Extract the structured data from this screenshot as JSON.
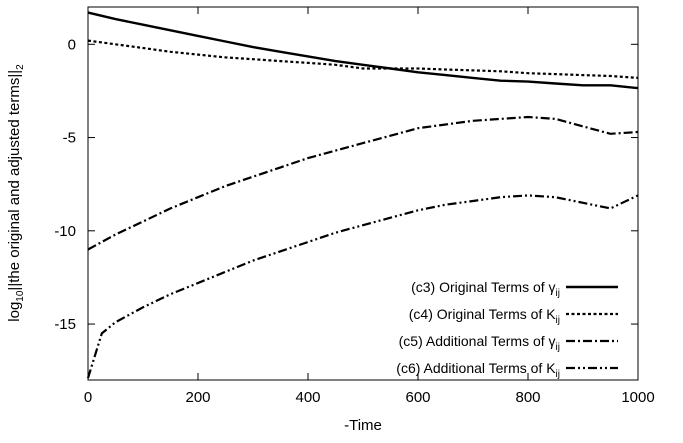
{
  "chart_data": {
    "type": "line",
    "xlabel": "-Time",
    "ylabel": "log10||the original and adjusted terms||2",
    "ylabel_parts": {
      "prefix": "log",
      "log_base": "10",
      "mid": "||the original and adjusted terms||",
      "norm_sub": "2"
    },
    "xlim": [
      0,
      1000
    ],
    "ylim": [
      -18,
      2
    ],
    "x_ticks": [
      0,
      200,
      400,
      600,
      800,
      1000
    ],
    "y_ticks": [
      0,
      -5,
      -10,
      -15
    ],
    "x_tick_labels": [
      "0",
      "200",
      "400",
      "600",
      "800",
      "1000"
    ],
    "y_tick_labels": [
      "0",
      "-5",
      "-10",
      "-15"
    ],
    "grid": false,
    "legend_position": "bottom-right",
    "series": [
      {
        "name": "(c3) Original Terms of γij",
        "label_parts": {
          "main": "(c3) Original Terms of ",
          "sym": "γ",
          "sub": "ij"
        },
        "style": "solid",
        "x": [
          0,
          50,
          100,
          150,
          200,
          250,
          300,
          350,
          400,
          450,
          500,
          550,
          600,
          650,
          700,
          750,
          800,
          850,
          900,
          950,
          1000
        ],
        "y": [
          1.7,
          1.35,
          1.05,
          0.75,
          0.45,
          0.15,
          -0.15,
          -0.4,
          -0.65,
          -0.9,
          -1.1,
          -1.3,
          -1.5,
          -1.65,
          -1.8,
          -1.95,
          -2.0,
          -2.1,
          -2.2,
          -2.2,
          -2.35
        ]
      },
      {
        "name": "(c4) Original Terms of Kij",
        "label_parts": {
          "main": "(c4) Original Terms of K",
          "sym": "",
          "sub": "ij"
        },
        "style": "dotted",
        "x": [
          0,
          50,
          100,
          150,
          200,
          250,
          300,
          350,
          400,
          450,
          500,
          550,
          600,
          650,
          700,
          750,
          800,
          850,
          900,
          950,
          1000
        ],
        "y": [
          0.2,
          0.0,
          -0.2,
          -0.4,
          -0.55,
          -0.7,
          -0.8,
          -0.9,
          -1.0,
          -1.1,
          -1.3,
          -1.3,
          -1.3,
          -1.35,
          -1.4,
          -1.45,
          -1.55,
          -1.6,
          -1.65,
          -1.7,
          -1.8
        ]
      },
      {
        "name": "(c5) Additional Terms of γij",
        "label_parts": {
          "main": "(c5) Additional Terms of ",
          "sym": "γ",
          "sub": "ij"
        },
        "style": "dashdot",
        "x": [
          0,
          50,
          100,
          150,
          200,
          250,
          300,
          350,
          400,
          450,
          500,
          550,
          600,
          650,
          700,
          750,
          800,
          850,
          900,
          950,
          1000
        ],
        "y": [
          -11.0,
          -10.2,
          -9.5,
          -8.8,
          -8.2,
          -7.6,
          -7.1,
          -6.6,
          -6.1,
          -5.7,
          -5.3,
          -4.9,
          -4.5,
          -4.3,
          -4.1,
          -4.0,
          -3.9,
          -4.0,
          -4.4,
          -4.8,
          -4.7
        ]
      },
      {
        "name": "(c6) Additional Terms of Kij",
        "label_parts": {
          "main": "(c6) Additional Terms of K",
          "sym": "",
          "sub": "ij"
        },
        "style": "dashdotdot",
        "x": [
          0,
          25,
          50,
          100,
          150,
          200,
          250,
          300,
          350,
          400,
          450,
          500,
          550,
          600,
          650,
          700,
          750,
          800,
          850,
          900,
          950,
          1000
        ],
        "y": [
          -17.9,
          -15.5,
          -14.9,
          -14.1,
          -13.4,
          -12.8,
          -12.2,
          -11.6,
          -11.1,
          -10.6,
          -10.1,
          -9.7,
          -9.3,
          -8.9,
          -8.6,
          -8.4,
          -8.2,
          -8.1,
          -8.2,
          -8.5,
          -8.8,
          -8.1
        ]
      }
    ]
  }
}
